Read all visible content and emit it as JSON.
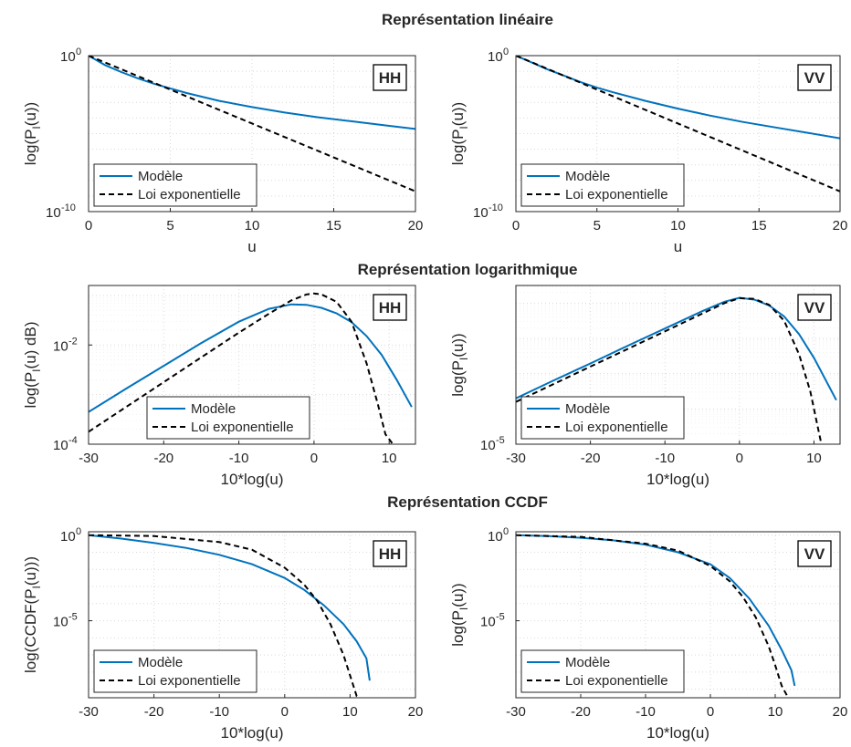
{
  "figure": {
    "row_titles": [
      "Représentation linéaire",
      "Représentation logarithmique",
      "Représentation CCDF"
    ]
  },
  "colors": {
    "model": "#0072BD",
    "exponential": "#000000",
    "grid": "#d9d9d9",
    "axis": "#262626"
  },
  "chart_data": [
    {
      "id": "lin-hh",
      "type": "line",
      "tag": "HH",
      "row": 0,
      "xlabel": "u",
      "ylabel_main": "log(P",
      "ylabel_sub": "I",
      "ylabel_tail": "(u))",
      "xscale": "linear",
      "yscale": "log",
      "xlim": [
        0,
        20
      ],
      "ylim_exp": [
        -10,
        0
      ],
      "xticks": [
        0,
        5,
        10,
        15,
        20
      ],
      "yticks": [
        {
          "exp": 0,
          "label": "10",
          "sup": "0"
        },
        {
          "exp": -10,
          "label": "10",
          "sup": "-10"
        }
      ],
      "legend": {
        "position": "bottom-left",
        "entries": [
          "Modèle",
          "Loi exponentielle"
        ]
      },
      "series": [
        {
          "name": "Modèle",
          "x": [
            0,
            1,
            2,
            3,
            4,
            5,
            6,
            8,
            10,
            12,
            14,
            16,
            18,
            20
          ],
          "y_exp": [
            0,
            -0.6,
            -1.05,
            -1.45,
            -1.8,
            -2.1,
            -2.4,
            -2.9,
            -3.3,
            -3.65,
            -3.95,
            -4.2,
            -4.45,
            -4.7
          ]
        },
        {
          "name": "Loi exponentielle",
          "x": [
            0,
            20
          ],
          "y_exp": [
            0,
            -8.7
          ]
        }
      ]
    },
    {
      "id": "lin-vv",
      "type": "line",
      "tag": "VV",
      "row": 0,
      "xlabel": "u",
      "ylabel_main": "log(P",
      "ylabel_sub": "I",
      "ylabel_tail": "(u))",
      "xscale": "linear",
      "yscale": "log",
      "xlim": [
        0,
        20
      ],
      "ylim_exp": [
        -10,
        0
      ],
      "xticks": [
        0,
        5,
        10,
        15,
        20
      ],
      "yticks": [
        {
          "exp": 0,
          "label": "10",
          "sup": "0"
        },
        {
          "exp": -10,
          "label": "10",
          "sup": "-10"
        }
      ],
      "legend": {
        "position": "bottom-left",
        "entries": [
          "Modèle",
          "Loi exponentielle"
        ]
      },
      "series": [
        {
          "name": "Modèle",
          "x": [
            0,
            1,
            2,
            3,
            4,
            5,
            6,
            8,
            10,
            12,
            14,
            16,
            18,
            20
          ],
          "y_exp": [
            0,
            -0.45,
            -0.9,
            -1.3,
            -1.7,
            -2.05,
            -2.35,
            -2.9,
            -3.4,
            -3.85,
            -4.25,
            -4.6,
            -4.95,
            -5.3
          ]
        },
        {
          "name": "Loi exponentielle",
          "x": [
            0,
            20
          ],
          "y_exp": [
            0,
            -8.7
          ]
        }
      ]
    },
    {
      "id": "log-hh",
      "type": "line",
      "tag": "HH",
      "row": 1,
      "xlabel": "10*log(u)",
      "ylabel_main": "log(P",
      "ylabel_sub": "I",
      "ylabel_tail": "(u) dB)",
      "xscale": "linear",
      "yscale": "log",
      "xlim": [
        -30,
        13.5
      ],
      "ylim_exp": [
        -4,
        -0.8
      ],
      "xticks": [
        -30,
        -20,
        -10,
        0,
        10
      ],
      "yticks": [
        {
          "exp": -2,
          "label": "10",
          "sup": "-2"
        },
        {
          "exp": -4,
          "label": "10",
          "sup": "-4"
        }
      ],
      "legend": {
        "position": "bottom-center",
        "entries": [
          "Modèle",
          "Loi exponentielle"
        ]
      },
      "series": [
        {
          "name": "Modèle",
          "x": [
            -30,
            -25,
            -20,
            -15,
            -10,
            -6,
            -3,
            -1,
            1,
            3,
            5,
            7,
            9,
            11,
            13
          ],
          "y_exp": [
            -3.35,
            -2.88,
            -2.42,
            -1.96,
            -1.53,
            -1.27,
            -1.18,
            -1.19,
            -1.25,
            -1.36,
            -1.54,
            -1.82,
            -2.2,
            -2.7,
            -3.25
          ]
        },
        {
          "name": "Loi exponentielle",
          "x": [
            -30,
            -25,
            -20,
            -15,
            -10,
            -6,
            -3,
            -1,
            0,
            1,
            3,
            5,
            7,
            8.5,
            9.5,
            10.5
          ],
          "y_exp": [
            -3.75,
            -3.25,
            -2.75,
            -2.25,
            -1.75,
            -1.37,
            -1.1,
            -0.98,
            -0.96,
            -0.98,
            -1.13,
            -1.53,
            -2.37,
            -3.2,
            -3.8,
            -4
          ]
        }
      ]
    },
    {
      "id": "log-vv",
      "type": "line",
      "tag": "VV",
      "row": 1,
      "xlabel": "10*log(u)",
      "ylabel_main": "log(P",
      "ylabel_sub": "I",
      "ylabel_tail": "(u))",
      "xscale": "linear",
      "yscale": "log",
      "xlim": [
        -30,
        13.5
      ],
      "ylim_exp": [
        -5,
        -0.5
      ],
      "xticks": [
        -30,
        -20,
        -10,
        0,
        10
      ],
      "yticks": [
        {
          "exp": -5,
          "label": "10",
          "sup": "-5"
        }
      ],
      "legend": {
        "position": "bottom-left",
        "entries": [
          "Modèle",
          "Loi exponentielle"
        ]
      },
      "series": [
        {
          "name": "Modèle",
          "x": [
            -30,
            -25,
            -20,
            -15,
            -10,
            -5,
            -2,
            0,
            2,
            4,
            6,
            8,
            10,
            13
          ],
          "y_exp": [
            -3.7,
            -3.2,
            -2.71,
            -2.21,
            -1.72,
            -1.23,
            -0.96,
            -0.85,
            -0.9,
            -1.07,
            -1.38,
            -1.88,
            -2.55,
            -3.75
          ]
        },
        {
          "name": "Loi exponentielle",
          "x": [
            -30,
            -25,
            -20,
            -15,
            -10,
            -5,
            -2,
            0,
            2,
            4,
            6,
            8,
            9.5,
            10.5,
            11
          ],
          "y_exp": [
            -3.8,
            -3.3,
            -2.8,
            -2.3,
            -1.8,
            -1.3,
            -1.0,
            -0.86,
            -0.88,
            -1.05,
            -1.5,
            -2.45,
            -3.5,
            -4.5,
            -5
          ]
        }
      ]
    },
    {
      "id": "ccdf-hh",
      "type": "line",
      "tag": "HH",
      "row": 2,
      "xlabel": "10*log(u)",
      "ylabel_main": "log(CCDF(P",
      "ylabel_sub": "I",
      "ylabel_tail": "(u)))",
      "xscale": "linear",
      "yscale": "log",
      "xlim": [
        -30,
        20
      ],
      "ylim_exp": [
        -9.5,
        0.2
      ],
      "xticks": [
        -30,
        -20,
        -10,
        0,
        10,
        20
      ],
      "yticks": [
        {
          "exp": 0,
          "label": "10",
          "sup": "0"
        },
        {
          "exp": -5,
          "label": "10",
          "sup": "-5"
        }
      ],
      "legend": {
        "position": "bottom-left",
        "entries": [
          "Modèle",
          "Loi exponentielle"
        ]
      },
      "series": [
        {
          "name": "Modèle",
          "x": [
            -30,
            -25,
            -20,
            -15,
            -10,
            -5,
            0,
            3,
            6,
            9,
            11,
            12.5,
            13
          ],
          "y_exp": [
            0,
            -0.2,
            -0.45,
            -0.75,
            -1.15,
            -1.7,
            -2.5,
            -3.2,
            -4.1,
            -5.2,
            -6.2,
            -7.2,
            -8.5
          ]
        },
        {
          "name": "Loi exponentielle",
          "x": [
            -30,
            -20,
            -10,
            -5,
            0,
            3,
            5,
            7,
            9,
            10,
            11,
            11.5
          ],
          "y_exp": [
            0,
            -0.05,
            -0.4,
            -0.85,
            -1.9,
            -2.9,
            -3.85,
            -5.2,
            -7.0,
            -8.2,
            -9.4,
            -9.5
          ]
        }
      ]
    },
    {
      "id": "ccdf-vv",
      "type": "line",
      "tag": "VV",
      "row": 2,
      "xlabel": "10*log(u)",
      "ylabel_main": "log(P",
      "ylabel_sub": "I",
      "ylabel_tail": "(u))",
      "xscale": "linear",
      "yscale": "log",
      "xlim": [
        -30,
        20
      ],
      "ylim_exp": [
        -9.5,
        0.2
      ],
      "xticks": [
        -30,
        -20,
        -10,
        0,
        10,
        20
      ],
      "yticks": [
        {
          "exp": 0,
          "label": "10",
          "sup": "0"
        },
        {
          "exp": -5,
          "label": "10",
          "sup": "-5"
        }
      ],
      "legend": {
        "position": "bottom-left",
        "entries": [
          "Modèle",
          "Loi exponentielle"
        ]
      },
      "series": [
        {
          "name": "Modèle",
          "x": [
            -30,
            -25,
            -20,
            -15,
            -10,
            -5,
            0,
            3,
            6,
            9,
            11,
            12.5,
            13
          ],
          "y_exp": [
            0,
            -0.05,
            -0.15,
            -0.3,
            -0.55,
            -1.0,
            -1.7,
            -2.5,
            -3.7,
            -5.3,
            -6.7,
            -7.9,
            -8.8
          ]
        },
        {
          "name": "Loi exponentielle",
          "x": [
            -30,
            -20,
            -10,
            -5,
            0,
            3,
            5,
            7,
            9,
            10,
            11,
            12
          ],
          "y_exp": [
            0,
            -0.1,
            -0.5,
            -0.9,
            -1.8,
            -2.7,
            -3.6,
            -4.8,
            -6.5,
            -7.6,
            -8.8,
            -9.5
          ]
        }
      ]
    }
  ]
}
